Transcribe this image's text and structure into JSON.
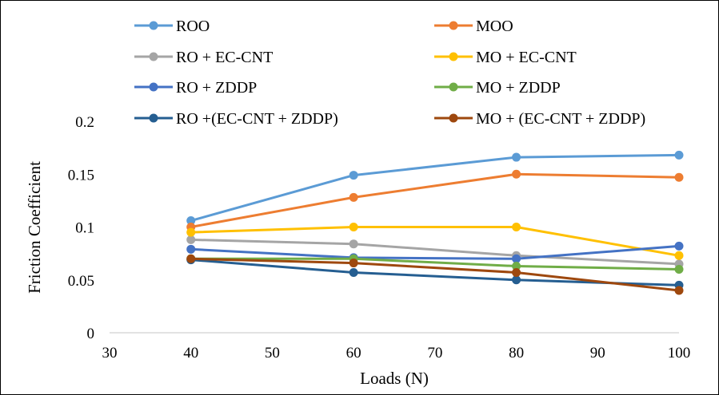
{
  "chart_data": {
    "type": "line",
    "xlabel": "Loads (N)",
    "ylabel": "Friction Coefficient",
    "xlim": [
      30,
      100
    ],
    "ylim": [
      0,
      0.2
    ],
    "x_ticks": [
      "30",
      "40",
      "50",
      "60",
      "70",
      "80",
      "90",
      "100"
    ],
    "y_ticks": [
      "0",
      "0.05",
      "0.1",
      "0.15",
      "0.2"
    ],
    "x_tick_values": [
      30,
      40,
      50,
      60,
      70,
      80,
      90,
      100
    ],
    "y_tick_values": [
      0,
      0.05,
      0.1,
      0.15,
      0.2
    ],
    "x": [
      40,
      60,
      80,
      100
    ],
    "grid": false,
    "legend_position": "top",
    "series": [
      {
        "name": "ROO",
        "color": "#5B9BD5",
        "values": [
          0.106,
          0.149,
          0.166,
          0.168
        ]
      },
      {
        "name": "MOO",
        "color": "#ED7D31",
        "values": [
          0.1,
          0.128,
          0.15,
          0.147
        ]
      },
      {
        "name": "RO + EC-CNT",
        "color": "#A5A5A5",
        "values": [
          0.088,
          0.084,
          0.073,
          0.065
        ]
      },
      {
        "name": "MO + EC-CNT",
        "color": "#FFC000",
        "values": [
          0.095,
          0.1,
          0.1,
          0.073
        ]
      },
      {
        "name": "RO + ZDDP",
        "color": "#4472C4",
        "values": [
          0.079,
          0.071,
          0.07,
          0.082
        ]
      },
      {
        "name": "MO + ZDDP",
        "color": "#70AD47",
        "values": [
          0.07,
          0.07,
          0.063,
          0.06
        ]
      },
      {
        "name": "RO +(EC-CNT + ZDDP)",
        "color": "#255E91",
        "values": [
          0.069,
          0.057,
          0.05,
          0.045
        ]
      },
      {
        "name": "MO + (EC-CNT + ZDDP)",
        "color": "#9E480E",
        "values": [
          0.07,
          0.066,
          0.057,
          0.04
        ]
      }
    ]
  }
}
